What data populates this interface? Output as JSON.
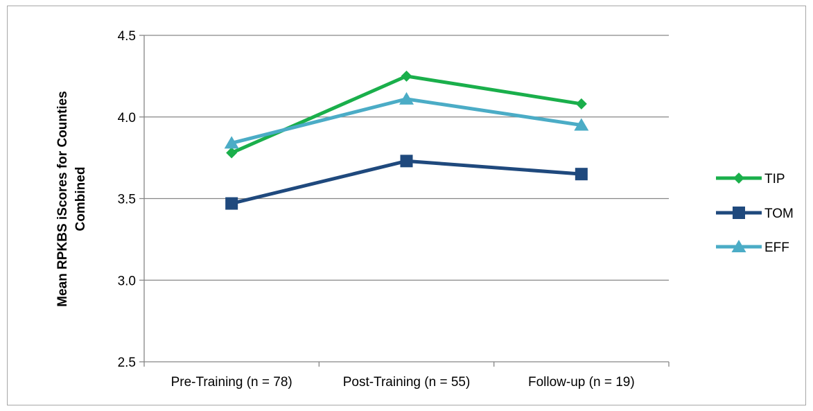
{
  "chart_data": {
    "type": "line",
    "title": "",
    "xlabel": "",
    "ylabel": "Mean RPKBS iScores for Counties Combined",
    "ylabel_lines": [
      "Mean RPKBS iScores for Counties",
      "Combined"
    ],
    "categories": [
      "Pre-Training (n = 78)",
      "Post-Training (n = 55)",
      "Follow-up (n = 19)"
    ],
    "ylim": [
      2.5,
      4.5
    ],
    "yticks": [
      2.5,
      3.0,
      3.5,
      4.0,
      4.5
    ],
    "ytick_labels": [
      "2.5",
      "3.0",
      "3.5",
      "4.0",
      "4.5"
    ],
    "grid": true,
    "legend_position": "right",
    "series": [
      {
        "name": "TIP",
        "values": [
          3.78,
          4.25,
          4.08
        ],
        "color": "#1aaf4b",
        "marker": "diamond"
      },
      {
        "name": "TOM",
        "values": [
          3.47,
          3.73,
          3.65
        ],
        "color": "#1f497d",
        "marker": "square"
      },
      {
        "name": "EFF",
        "values": [
          3.84,
          4.11,
          3.95
        ],
        "color": "#4bacc6",
        "marker": "triangle"
      }
    ]
  }
}
